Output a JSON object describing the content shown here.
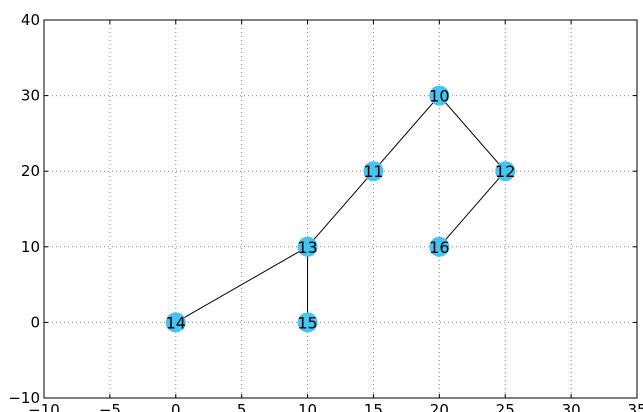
{
  "chart_data": {
    "type": "scatter",
    "title": "",
    "xlabel": "",
    "ylabel": "",
    "xlim": [
      -10,
      35
    ],
    "ylim": [
      -10,
      40
    ],
    "xticks": [
      -10,
      -5,
      0,
      5,
      10,
      15,
      20,
      25,
      30,
      35
    ],
    "yticks": [
      -10,
      0,
      10,
      20,
      30,
      40
    ],
    "xtick_labels": [
      "−10",
      "−5",
      "0",
      "5",
      "10",
      "15",
      "20",
      "25",
      "30",
      "35"
    ],
    "ytick_labels": [
      "−10",
      "0",
      "10",
      "20",
      "30",
      "40"
    ],
    "grid": true,
    "node_color": "#44c4f0",
    "edge_color": "#000000",
    "nodes": [
      {
        "label": "10",
        "x": 20,
        "y": 30
      },
      {
        "label": "11",
        "x": 15,
        "y": 20
      },
      {
        "label": "12",
        "x": 25,
        "y": 20
      },
      {
        "label": "13",
        "x": 10,
        "y": 10
      },
      {
        "label": "14",
        "x": 0,
        "y": 0
      },
      {
        "label": "15",
        "x": 10,
        "y": 0
      },
      {
        "label": "16",
        "x": 20,
        "y": 10
      }
    ],
    "edges": [
      [
        "10",
        "11"
      ],
      [
        "10",
        "12"
      ],
      [
        "11",
        "13"
      ],
      [
        "12",
        "16"
      ],
      [
        "13",
        "14"
      ],
      [
        "13",
        "15"
      ]
    ]
  }
}
